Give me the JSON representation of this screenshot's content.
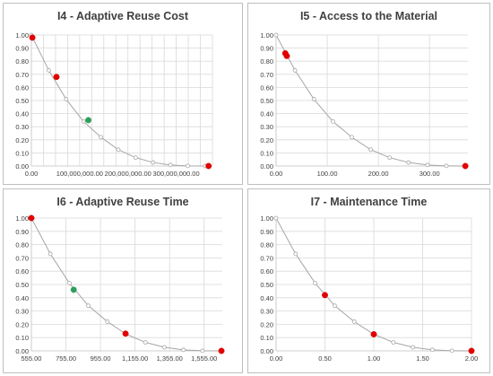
{
  "chart_data": [
    {
      "type": "scatter",
      "title": "I4 - Adaptive Reuse Cost",
      "xlabel": "",
      "ylabel": "",
      "xlim": [
        0,
        375000000
      ],
      "ylim": [
        0,
        1
      ],
      "xticks": [
        0,
        100000000,
        200000000,
        300000000
      ],
      "xtick_labels": [
        "0.00",
        "100,000,000.00",
        "200,000,000.00",
        "300,000,000.00"
      ],
      "yticks": [
        0,
        0.1,
        0.2,
        0.3,
        0.4,
        0.5,
        0.6,
        0.7,
        0.8,
        0.9,
        1.0
      ],
      "ytick_labels": [
        "0.00",
        "0.10",
        "0.20",
        "0.30",
        "0.40",
        "0.50",
        "0.60",
        "0.70",
        "0.80",
        "0.90",
        "1.00"
      ],
      "x_minor_step": 25000000,
      "curve": {
        "x": [
          0,
          36000000,
          72000000,
          108000000,
          144000000,
          180000000,
          216000000,
          252000000,
          288000000,
          324000000,
          360000000
        ],
        "y": [
          1.0,
          0.73,
          0.51,
          0.34,
          0.22,
          0.125,
          0.064,
          0.027,
          0.008,
          0.001,
          0.0
        ]
      },
      "highlight_points": [
        {
          "x": 2000000,
          "y": 0.98,
          "color": "#e00000"
        },
        {
          "x": 52000000,
          "y": 0.68,
          "color": "#e00000"
        },
        {
          "x": 118000000,
          "y": 0.35,
          "color": "#2ca05a"
        },
        {
          "x": 367000000,
          "y": 0.0,
          "color": "#e00000"
        }
      ],
      "grid": "major+minor"
    },
    {
      "type": "scatter",
      "title": "I5 - Access to the Material",
      "xlabel": "",
      "ylabel": "",
      "xlim": [
        0,
        375
      ],
      "ylim": [
        0,
        1
      ],
      "xticks": [
        0,
        100,
        200,
        300
      ],
      "xtick_labels": [
        "0.00",
        "100.00",
        "200.00",
        "300.00"
      ],
      "yticks": [
        0,
        0.1,
        0.2,
        0.3,
        0.4,
        0.5,
        0.6,
        0.7,
        0.8,
        0.9,
        1.0
      ],
      "ytick_labels": [
        "0.00",
        "0.10",
        "0.20",
        "0.30",
        "0.40",
        "0.50",
        "0.60",
        "0.70",
        "0.80",
        "0.90",
        "1.00"
      ],
      "curve": {
        "x": [
          0,
          37,
          74,
          111,
          148,
          185,
          222,
          259,
          296,
          333,
          370
        ],
        "y": [
          1.0,
          0.73,
          0.51,
          0.34,
          0.22,
          0.125,
          0.064,
          0.027,
          0.008,
          0.001,
          0.0
        ]
      },
      "highlight_points": [
        {
          "x": 18,
          "y": 0.86,
          "color": "#e00000"
        },
        {
          "x": 21,
          "y": 0.84,
          "color": "#e00000"
        },
        {
          "x": 370,
          "y": 0.0,
          "color": "#e00000"
        }
      ],
      "grid": "major"
    },
    {
      "type": "scatter",
      "title": "I6 - Adaptive Reuse Time",
      "xlabel": "",
      "ylabel": "",
      "xlim": [
        555,
        1660
      ],
      "ylim": [
        0,
        1
      ],
      "xticks": [
        555,
        755,
        955,
        1155,
        1355,
        1555
      ],
      "xtick_labels": [
        "555.00",
        "755.00",
        "955.00",
        "1,155.00",
        "1,355.00",
        "1,555.00"
      ],
      "yticks": [
        0,
        0.1,
        0.2,
        0.3,
        0.4,
        0.5,
        0.6,
        0.7,
        0.8,
        0.9,
        1.0
      ],
      "ytick_labels": [
        "0.00",
        "0.10",
        "0.20",
        "0.30",
        "0.40",
        "0.50",
        "0.60",
        "0.70",
        "0.80",
        "0.90",
        "1.00"
      ],
      "curve": {
        "x": [
          555,
          665,
          775,
          885,
          995,
          1105,
          1215,
          1325,
          1435,
          1545,
          1655
        ],
        "y": [
          1.0,
          0.73,
          0.51,
          0.34,
          0.22,
          0.125,
          0.064,
          0.027,
          0.008,
          0.001,
          0.0
        ]
      },
      "highlight_points": [
        {
          "x": 555,
          "y": 1.0,
          "color": "#e00000"
        },
        {
          "x": 800,
          "y": 0.46,
          "color": "#2ca05a"
        },
        {
          "x": 1100,
          "y": 0.13,
          "color": "#e00000"
        },
        {
          "x": 1655,
          "y": 0.0,
          "color": "#e00000"
        }
      ],
      "grid": "major"
    },
    {
      "type": "scatter",
      "title": "I7 - Maintenance Time",
      "xlabel": "",
      "ylabel": "",
      "xlim": [
        0,
        2
      ],
      "ylim": [
        0,
        1
      ],
      "xticks": [
        0,
        0.5,
        1.0,
        1.5,
        2.0
      ],
      "xtick_labels": [
        "0.00",
        "0.50",
        "1.00",
        "1.50",
        "2.00"
      ],
      "yticks": [
        0,
        0.1,
        0.2,
        0.3,
        0.4,
        0.5,
        0.6,
        0.7,
        0.8,
        0.9,
        1.0
      ],
      "ytick_labels": [
        "0.00",
        "0.10",
        "0.20",
        "0.30",
        "0.40",
        "0.50",
        "0.60",
        "0.70",
        "0.80",
        "0.90",
        "1.00"
      ],
      "curve": {
        "x": [
          0,
          0.2,
          0.4,
          0.6,
          0.8,
          1.0,
          1.2,
          1.4,
          1.6,
          1.8,
          2.0
        ],
        "y": [
          1.0,
          0.73,
          0.51,
          0.34,
          0.22,
          0.125,
          0.064,
          0.027,
          0.008,
          0.001,
          0.0
        ]
      },
      "highlight_points": [
        {
          "x": 0.5,
          "y": 0.42,
          "color": "#e00000"
        },
        {
          "x": 1.0,
          "y": 0.125,
          "color": "#e00000"
        },
        {
          "x": 2.0,
          "y": 0.0,
          "color": "#e00000"
        }
      ],
      "grid": "major"
    }
  ]
}
